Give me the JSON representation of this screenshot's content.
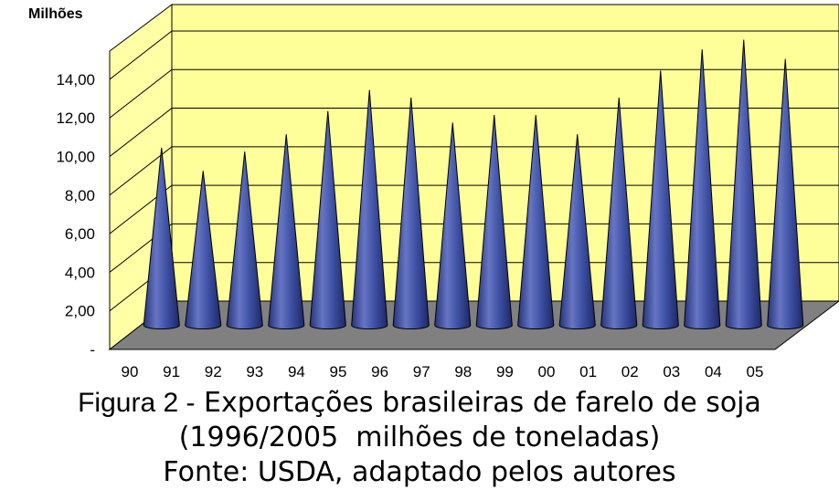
{
  "chart_data": {
    "type": "bar",
    "bar_shape": "cone",
    "unit_label": "Milhões",
    "categories": [
      "90",
      "91",
      "92",
      "93",
      "94",
      "95",
      "96",
      "97",
      "98",
      "99",
      "00",
      "01",
      "02",
      "03",
      "04",
      "05"
    ],
    "values": [
      9.2,
      8.0,
      9.0,
      9.9,
      11.1,
      12.2,
      11.8,
      10.5,
      10.9,
      10.9,
      9.9,
      11.8,
      13.2,
      14.3,
      14.8,
      13.8
    ],
    "yticks": [
      "-",
      "2,00",
      "4,00",
      "6,00",
      "8,00",
      "10,00",
      "12,00",
      "14,00"
    ],
    "ylim": [
      0,
      15
    ],
    "grid": true,
    "colors": {
      "wall": "#FFFF99",
      "side_wall": "#FFFFA6",
      "floor": "#808080",
      "cone": "#3D4FA2",
      "cone_dark": "#27347A",
      "cone_light": "#6675C4"
    }
  },
  "caption": {
    "line1_lead": "Figura 2 -",
    "line1_rest": " Exportações brasileiras de farelo de soja",
    "line2": "(1996/2005  milhões de toneladas)",
    "line3": "Fonte: USDA, adaptado pelos autores"
  }
}
